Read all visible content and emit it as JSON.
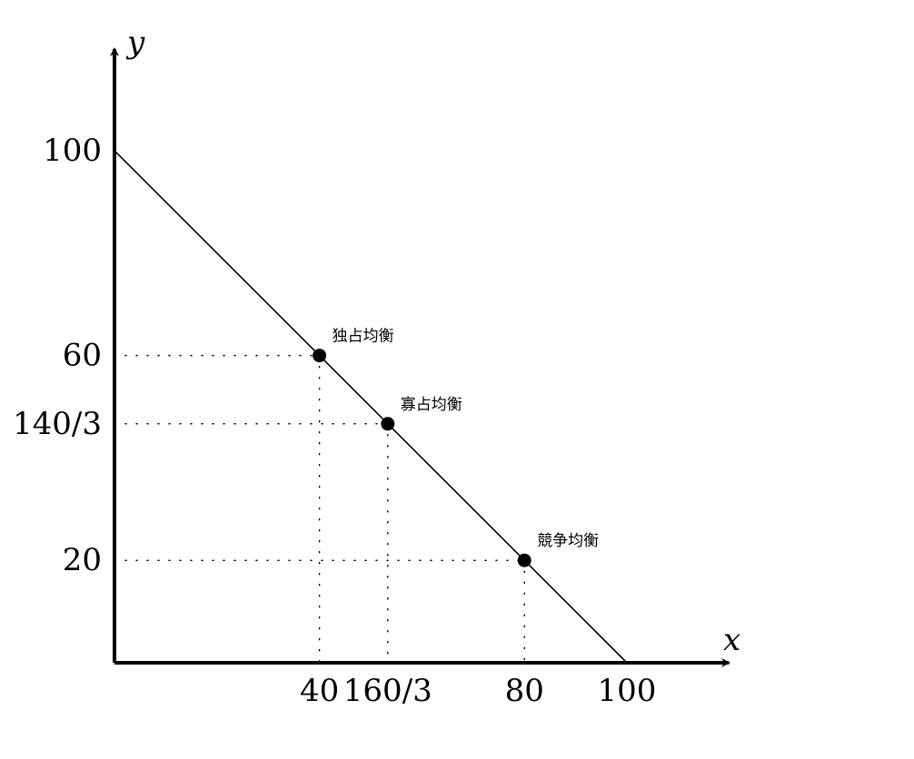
{
  "chart_data": {
    "type": "line",
    "xlabel": "x",
    "ylabel": "y",
    "xlim": [
      0,
      120
    ],
    "ylim": [
      0,
      120
    ],
    "grid": false,
    "series": [
      {
        "x": [
          0,
          100
        ],
        "y": [
          100,
          0
        ],
        "color": "#000000"
      }
    ],
    "points": [
      {
        "x": 40,
        "y": 60,
        "label": "独占均衡"
      },
      {
        "x": 53.333,
        "y": 46.667,
        "label": "寡占均衡"
      },
      {
        "x": 80,
        "y": 20,
        "label": "競争均衡"
      }
    ],
    "x_ticks": [
      {
        "value": 40,
        "label": "40"
      },
      {
        "value": 53.333,
        "label": "160/3"
      },
      {
        "value": 80,
        "label": "80"
      },
      {
        "value": 100,
        "label": "100"
      }
    ],
    "y_ticks": [
      {
        "value": 100,
        "label": "100"
      },
      {
        "value": 60,
        "label": "60"
      },
      {
        "value": 46.667,
        "label": "140/3"
      },
      {
        "value": 20,
        "label": "20"
      }
    ]
  }
}
